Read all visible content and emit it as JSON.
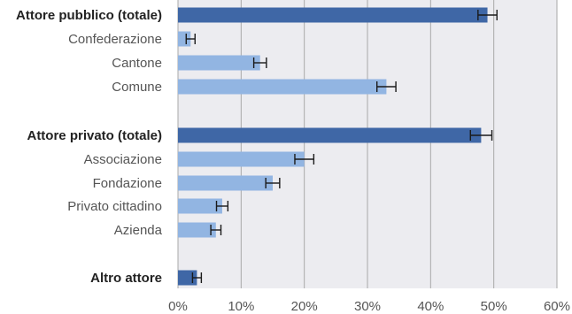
{
  "chart_data": {
    "type": "bar",
    "orientation": "horizontal",
    "title": "",
    "xlabel": "",
    "ylabel": "",
    "xlim": [
      0,
      60
    ],
    "grid": true,
    "legend": "none",
    "tick_labels": [
      "0%",
      "10%",
      "20%",
      "30%",
      "40%",
      "50%",
      "60%"
    ],
    "tick_values": [
      0,
      10,
      20,
      30,
      40,
      50,
      60
    ],
    "colors": {
      "total": "#3f67a6",
      "sub": "#92b5e2",
      "plot_bg": "#ececf0",
      "grid": "#a9a9a9",
      "error": "#1a1a1a"
    },
    "categories": [
      {
        "label": "Attore pubblico (totale)",
        "value": 49,
        "err_low": 47.5,
        "err_high": 50.5,
        "total": true
      },
      {
        "label": "Confederazione",
        "value": 2,
        "err_low": 1.3,
        "err_high": 2.7,
        "total": false
      },
      {
        "label": "Cantone",
        "value": 13,
        "err_low": 12.0,
        "err_high": 14.0,
        "total": false
      },
      {
        "label": "Comune",
        "value": 33,
        "err_low": 31.5,
        "err_high": 34.5,
        "total": false
      },
      {
        "label": "Attore privato (totale)",
        "value": 48,
        "err_low": 46.3,
        "err_high": 49.7,
        "total": true
      },
      {
        "label": "Associazione",
        "value": 20,
        "err_low": 18.5,
        "err_high": 21.5,
        "total": false
      },
      {
        "label": "Fondazione",
        "value": 15,
        "err_low": 13.9,
        "err_high": 16.1,
        "total": false
      },
      {
        "label": "Privato cittadino",
        "value": 7,
        "err_low": 6.1,
        "err_high": 7.9,
        "total": false
      },
      {
        "label": "Azienda",
        "value": 6,
        "err_low": 5.2,
        "err_high": 6.8,
        "total": false
      },
      {
        "label": "Altro attore",
        "value": 3,
        "err_low": 2.3,
        "err_high": 3.7,
        "total": true
      }
    ]
  }
}
